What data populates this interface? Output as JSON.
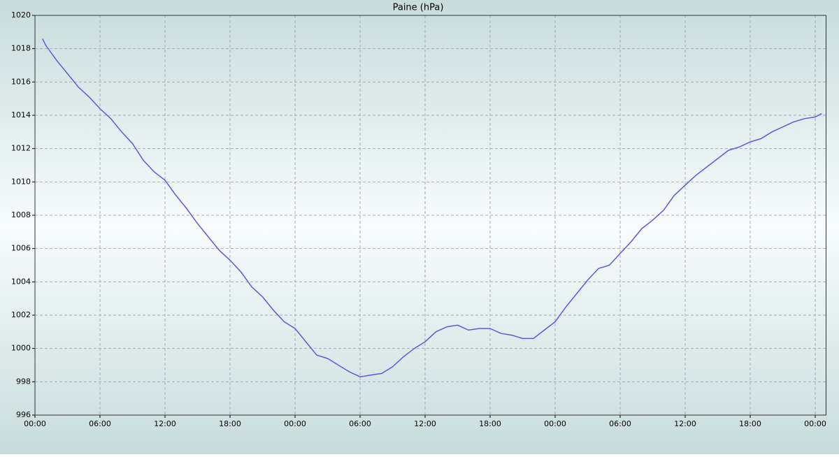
{
  "chart_data": {
    "type": "line",
    "title": "Paine (hPa)",
    "x": [
      0.7,
      1,
      2,
      3,
      4,
      5,
      6,
      7,
      8,
      9,
      10,
      11,
      12,
      13,
      14,
      15,
      16,
      17,
      18,
      19,
      20,
      21,
      22,
      23,
      24,
      25,
      26,
      27,
      28,
      29,
      30,
      31,
      32,
      33,
      34,
      35,
      36,
      37,
      38,
      39,
      40,
      41,
      42,
      43,
      44,
      45,
      46,
      47,
      48,
      49,
      50,
      51,
      52,
      53,
      54,
      55,
      56,
      57,
      58,
      59,
      60,
      61,
      62,
      63,
      64,
      65,
      66,
      67,
      68,
      69,
      70,
      71,
      72,
      72.6
    ],
    "series": [
      {
        "name": "Paine",
        "color": "#5b5bdc",
        "values": [
          1018.6,
          1018.2,
          1017.3,
          1016.5,
          1015.7,
          1015.1,
          1014.4,
          1013.8,
          1013.0,
          1012.3,
          1011.3,
          1010.6,
          1010.1,
          1009.2,
          1008.4,
          1007.5,
          1006.7,
          1005.9,
          1005.3,
          1004.6,
          1003.7,
          1003.1,
          1002.3,
          1001.6,
          1001.2,
          1000.4,
          999.6,
          999.4,
          999.0,
          998.6,
          998.3,
          998.4,
          998.5,
          998.9,
          999.5,
          1000.0,
          1000.4,
          1001.0,
          1001.3,
          1001.4,
          1001.1,
          1001.2,
          1001.2,
          1000.9,
          1000.8,
          1000.6,
          1000.6,
          1001.1,
          1001.6,
          1002.5,
          1003.3,
          1004.1,
          1004.8,
          1005.0,
          1005.7,
          1006.4,
          1007.2,
          1007.7,
          1008.3,
          1009.2,
          1009.8,
          1010.4,
          1010.9,
          1011.4,
          1011.9,
          1012.1,
          1012.4,
          1012.6,
          1013.0,
          1013.3,
          1013.6,
          1013.8,
          1013.9,
          1014.1
        ]
      }
    ],
    "xlim": [
      0,
      73
    ],
    "xticks": [
      {
        "value": 0,
        "label": "00:00"
      },
      {
        "value": 6,
        "label": "06:00"
      },
      {
        "value": 12,
        "label": "12:00"
      },
      {
        "value": 18,
        "label": "18:00"
      },
      {
        "value": 24,
        "label": "00:00"
      },
      {
        "value": 30,
        "label": "06:00"
      },
      {
        "value": 36,
        "label": "12:00"
      },
      {
        "value": 42,
        "label": "18:00"
      },
      {
        "value": 48,
        "label": "00:00"
      },
      {
        "value": 54,
        "label": "06:00"
      },
      {
        "value": 60,
        "label": "12:00"
      },
      {
        "value": 66,
        "label": "18:00"
      },
      {
        "value": 72,
        "label": "00:00"
      }
    ],
    "ylim": [
      996,
      1020
    ],
    "yticks": [
      996,
      998,
      1000,
      1002,
      1004,
      1006,
      1008,
      1010,
      1012,
      1014,
      1016,
      1018,
      1020
    ],
    "grid": true
  }
}
